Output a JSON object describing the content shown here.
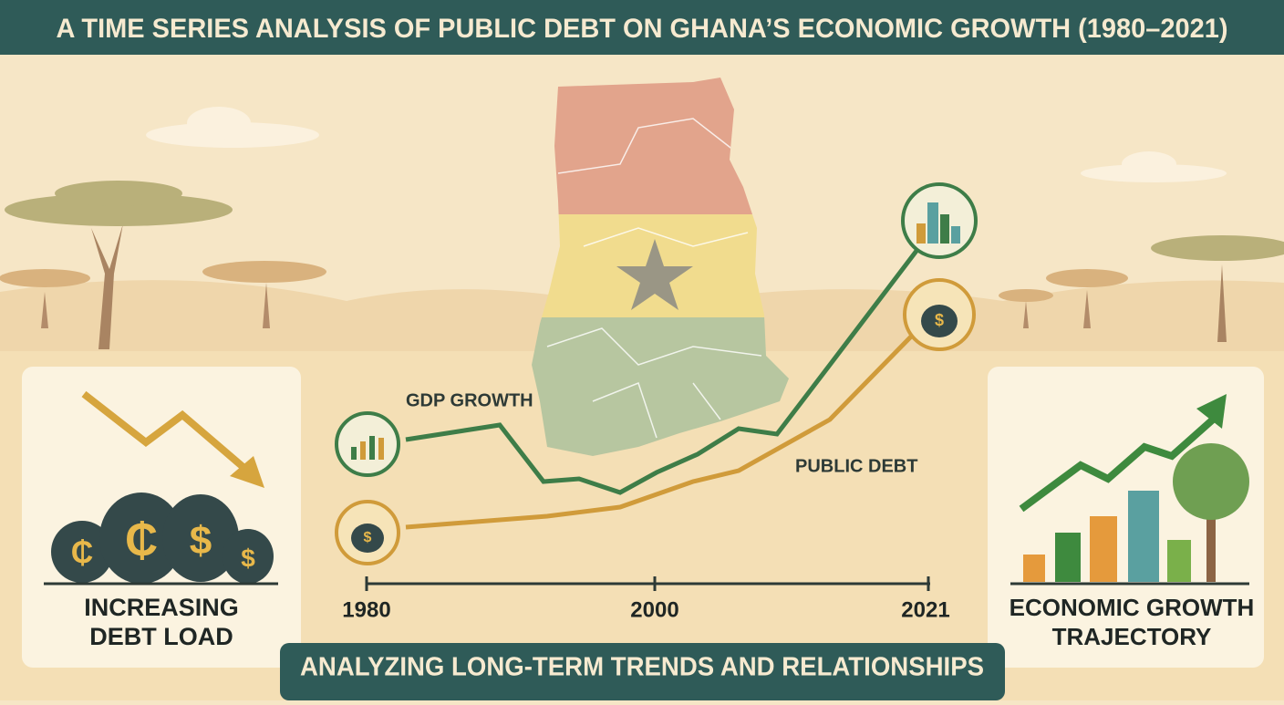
{
  "header": {
    "title": "A TIME SERIES ANALYSIS OF PUBLIC DEBT ON GHANA’S ECONOMIC GROWTH (1980–2021)"
  },
  "chart": {
    "gdp_label": "GDP GROWTH",
    "debt_label": "PUBLIC DEBT",
    "x_labels": [
      "1980",
      "2000",
      "2021"
    ]
  },
  "icons": {
    "cedi": "₵",
    "dollar": "$"
  },
  "left_panel": {
    "caption": [
      "INCREASING",
      "DEBT LOAD"
    ]
  },
  "right_panel": {
    "caption": [
      "ECONOMIC GROWTH",
      "TRAJECTORY"
    ]
  },
  "footer": {
    "banner": "ANALYZING LONG-TERM TRENDS AND RELATIONSHIPS"
  }
}
